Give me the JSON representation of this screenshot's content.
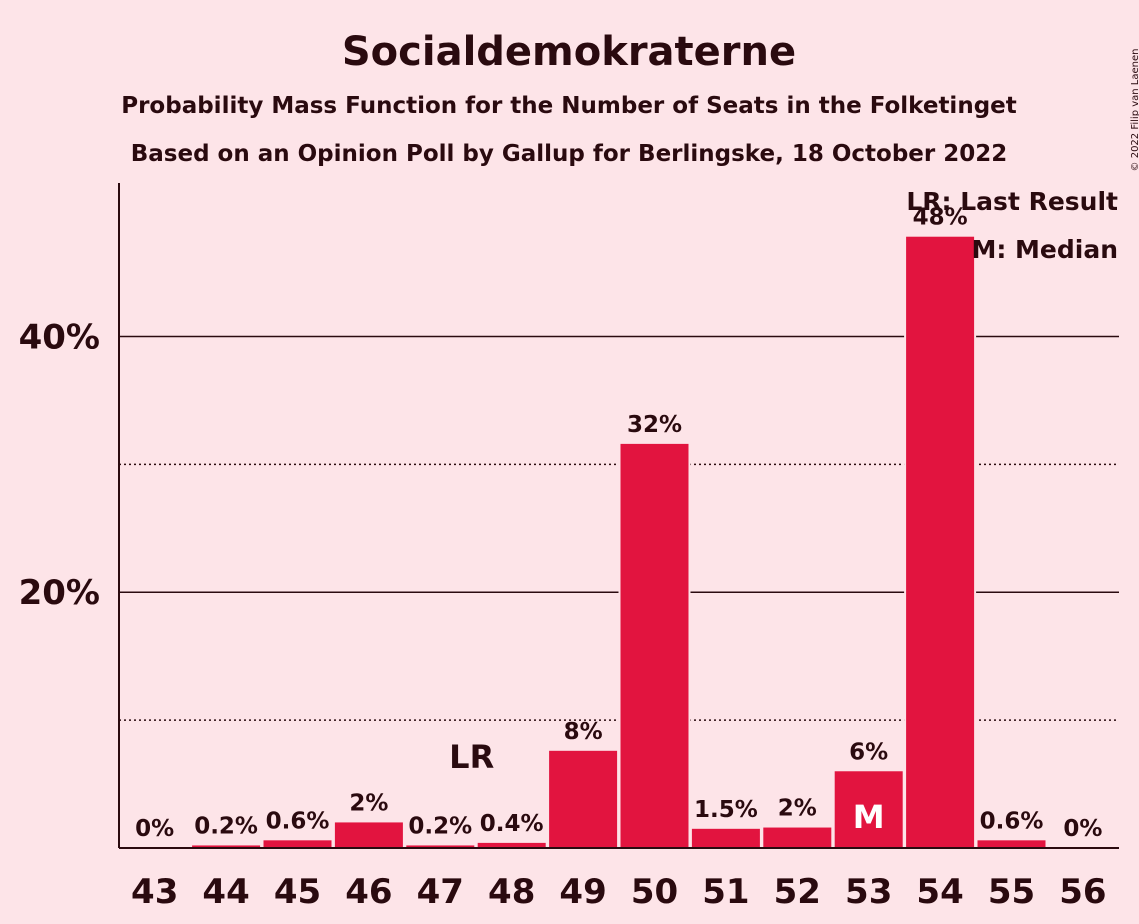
{
  "chart_data": {
    "type": "bar",
    "title": "Socialdemokraterne",
    "subtitle": "Probability Mass Function for the Number of Seats in the Folketinget",
    "subtitle2": "Based on an Opinion Poll by Gallup for Berlingske, 18 October 2022",
    "copyright": "© 2022 Filip van Laenen",
    "categories": [
      "43",
      "44",
      "45",
      "46",
      "47",
      "48",
      "49",
      "50",
      "51",
      "52",
      "53",
      "54",
      "55",
      "56"
    ],
    "values": [
      0,
      0.2,
      0.6,
      2.0,
      0.2,
      0.4,
      7.6,
      31.6,
      1.5,
      1.6,
      6.0,
      47.8,
      0.6,
      0
    ],
    "value_labels": [
      "0%",
      "0.2%",
      "0.6%",
      "2%",
      "0.2%",
      "0.4%",
      "8%",
      "32%",
      "1.5%",
      "2%",
      "6%",
      "48%",
      "0.6%",
      "0%"
    ],
    "ylim": [
      0,
      52
    ],
    "yticks_major": [
      20,
      40
    ],
    "ytick_labels": [
      "20%",
      "40%"
    ],
    "yticks_minor": [
      10,
      30
    ],
    "last_result_seat": "48",
    "last_result_marker": "LR",
    "median_seat": "53",
    "median_marker": "M",
    "legend": [
      "LR: Last Result",
      "M: Median"
    ],
    "bar_color": "#e2143f",
    "background": "#fde4e8"
  }
}
